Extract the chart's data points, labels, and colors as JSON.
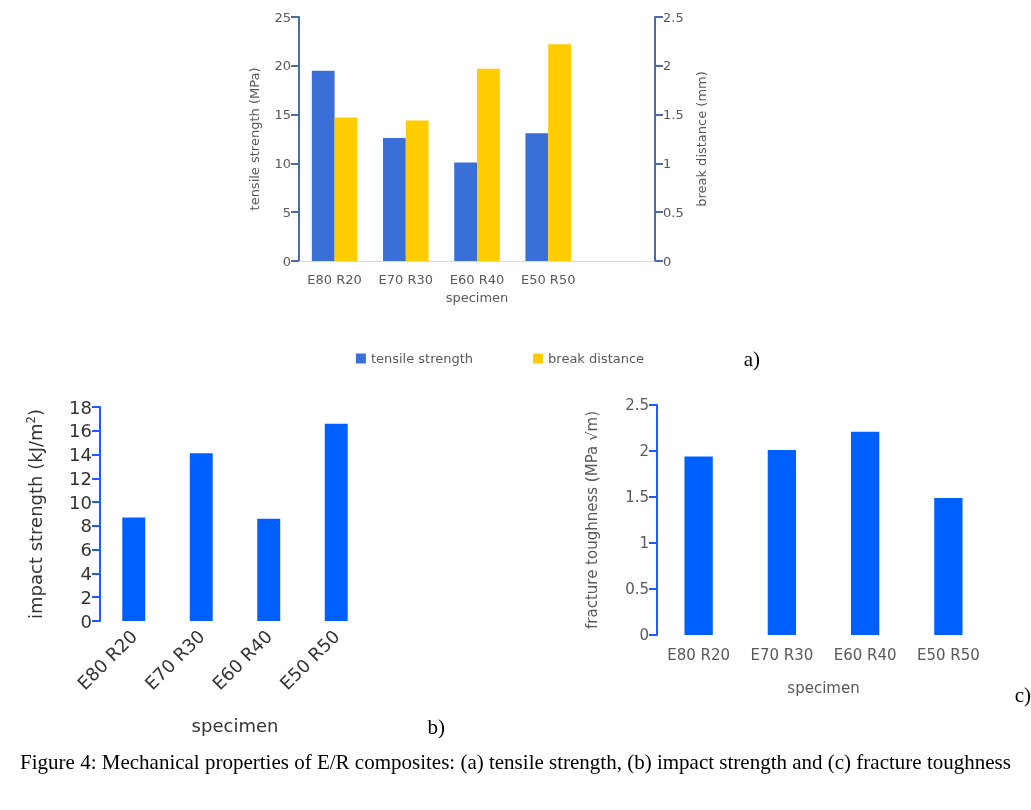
{
  "chart_data": [
    {
      "type": "bar",
      "xlabel": "specimen",
      "ylabel": "tensile strength (MPa)",
      "y2label": "break distance (mm)",
      "categories": [
        "E80 R20",
        "E70 R30",
        "E60 R40",
        "E50 R50",
        null
      ],
      "ylim": [
        0,
        25
      ],
      "yticks": [
        0,
        5,
        10,
        15,
        20,
        25
      ],
      "y2lim": [
        0,
        2.5
      ],
      "y2ticks": [
        0,
        0.5,
        1,
        1.5,
        2,
        2.5
      ],
      "legend": "bottom",
      "annotations": [
        "a)"
      ],
      "series": [
        {
          "name": "tensile strength",
          "color": "#3a6fd8",
          "values": [
            19.5,
            12.6,
            10.1,
            13.1,
            null
          ]
        },
        {
          "name": "break distance",
          "color": "#ffcc00",
          "axis": "y2",
          "values": [
            1.47,
            1.44,
            1.97,
            2.22,
            null
          ]
        }
      ]
    },
    {
      "type": "bar",
      "xlabel": "specimen",
      "ylabel": "impact strength (kJ/m$^{2}$)",
      "categories": [
        "E80 R20",
        "E70 R30",
        "E60 R40",
        "E50 R50"
      ],
      "ylim": [
        0,
        18
      ],
      "yticks": [
        0,
        2,
        4,
        6,
        8,
        10,
        12,
        14,
        16,
        18
      ],
      "color": "#0060ff",
      "values": [
        8.7,
        14.1,
        8.6,
        16.6
      ],
      "annotations": [
        "b)"
      ]
    },
    {
      "type": "bar",
      "xlabel": "specimen",
      "ylabel": "fracture toughness (MPa √m)",
      "categories": [
        "E80 R20",
        "E70 R30",
        "E60 R40",
        "E50 R50"
      ],
      "ylim": [
        0,
        2.5
      ],
      "yticks": [
        0,
        0.5,
        1,
        1.5,
        2,
        2.5
      ],
      "color": "#0060ff",
      "values": [
        1.94,
        2.01,
        2.21,
        1.49
      ],
      "annotations": [
        "c)",
        "Figure 4: Mechanical properties of E/R composites: (a) tensile strength, (b) impact strength and (c) fracture toughness"
      ]
    }
  ]
}
